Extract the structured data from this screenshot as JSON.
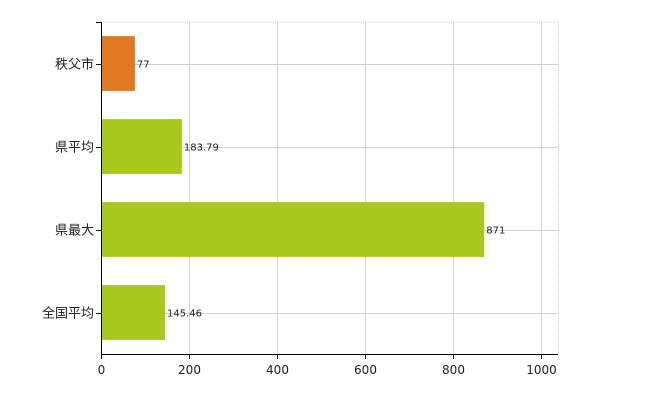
{
  "chart_data": {
    "type": "bar",
    "orientation": "horizontal",
    "categories": [
      "秩父市",
      "県平均",
      "県最大",
      "全国平均"
    ],
    "values": [
      77,
      183.79,
      871,
      145.46
    ],
    "value_labels": [
      "77",
      "183.79",
      "871",
      "145.46"
    ],
    "bar_colors": [
      "#e07820",
      "#a8c81e",
      "#a8c81e",
      "#a8c81e"
    ],
    "xlim": [
      0,
      1000
    ],
    "xticks": [
      0,
      200,
      400,
      600,
      800,
      1000
    ],
    "xtick_labels": [
      "0",
      "200",
      "400",
      "600",
      "800",
      "1000"
    ],
    "grid": true,
    "grid_color": "#d0d0d0",
    "axis_color": "#000000",
    "title": "",
    "xlabel": "",
    "ylabel": ""
  }
}
